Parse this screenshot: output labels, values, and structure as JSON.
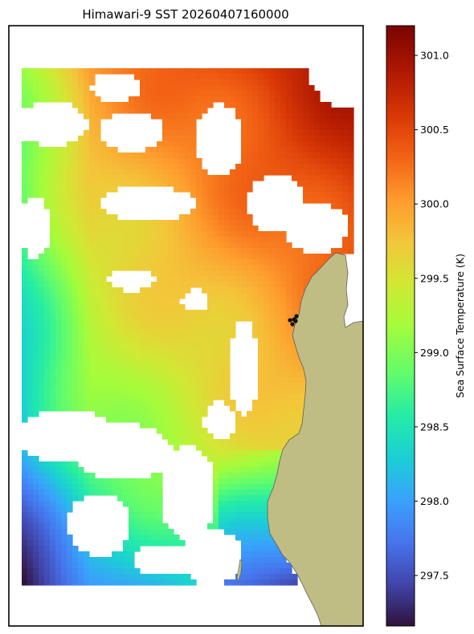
{
  "chart_data": {
    "type": "heatmap",
    "title": "Himawari-9 SST 20260407160000",
    "colorbar": {
      "label": "Sea Surface Temperature (K)",
      "range": [
        297.16,
        301.2
      ],
      "ticks": [
        297.5,
        298.0,
        298.5,
        299.0,
        299.5,
        300.0,
        300.5,
        301.0
      ],
      "tick_labels": [
        "297.5",
        "298.0",
        "298.5",
        "299.0",
        "299.5",
        "300.0",
        "300.5",
        "301.0"
      ],
      "colormap": "turbo"
    },
    "land_color": "#bfbd84",
    "grid": false,
    "legend": "none"
  }
}
